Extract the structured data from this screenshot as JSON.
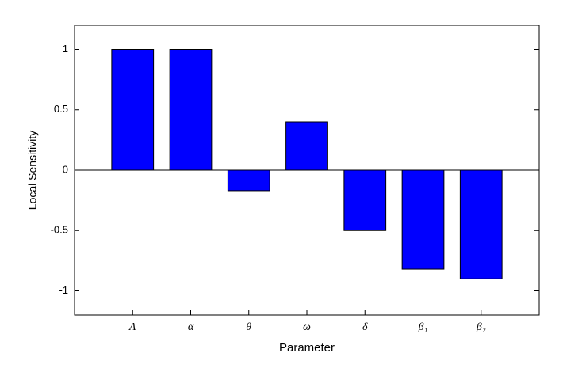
{
  "chart_data": {
    "type": "bar",
    "x_label": "Parameter",
    "y_label": "Local Sensitivity",
    "categories": [
      "Λ",
      "α",
      "θ",
      "ω",
      "δ",
      "β₁",
      "β₂"
    ],
    "values": [
      1,
      1,
      -0.17,
      0.4,
      -0.5,
      -0.82,
      -0.9
    ],
    "color": "#0000ff",
    "edge_color": "#000000",
    "ylim": [
      -1.2,
      1.2
    ],
    "yticks": [
      -1,
      -0.5,
      0,
      0.5,
      1
    ],
    "grid": false
  }
}
